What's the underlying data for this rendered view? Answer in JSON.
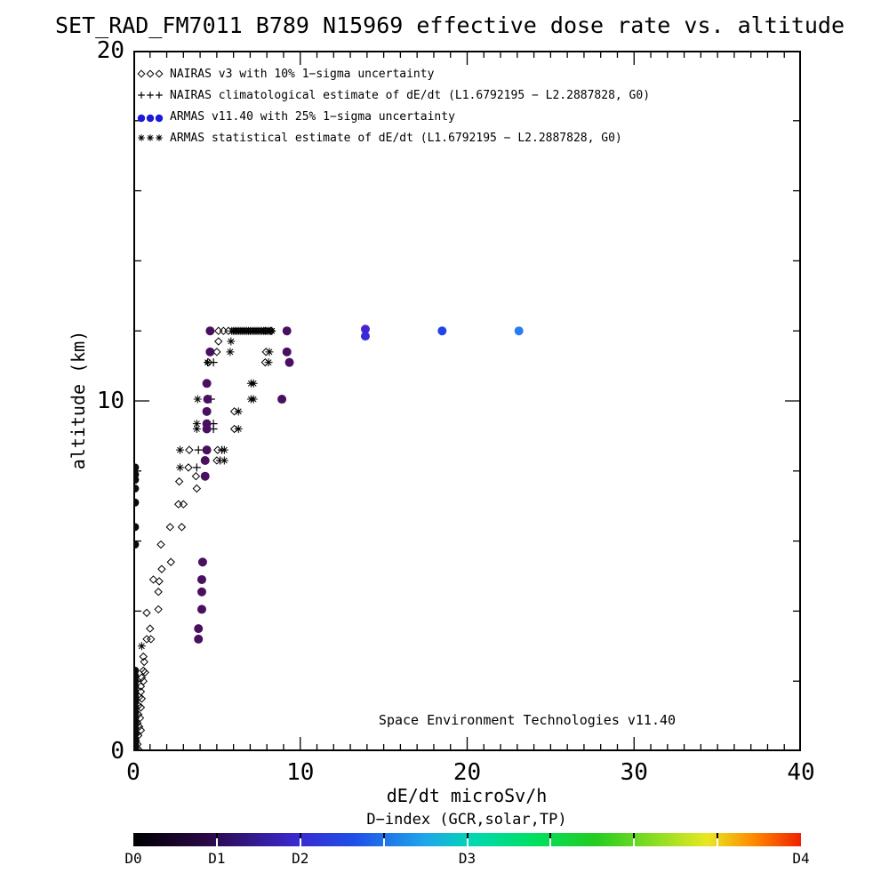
{
  "title": "SET_RAD_FM7011  B789 N15969 effective dose rate vs. altitude",
  "chart_data": {
    "type": "scatter",
    "xlabel": "dE/dt microSv/h",
    "ylabel": "altitude (km)",
    "xlim": [
      0,
      40
    ],
    "ylim": [
      0,
      20
    ],
    "x_major_ticks": [
      0,
      10,
      20,
      30,
      40
    ],
    "x_minor_step": 1,
    "y_major_ticks": [
      0,
      10,
      20
    ],
    "y_minor_step": 2,
    "grid": false,
    "annotation": "Space Environment Technologies v11.40",
    "legend": [
      {
        "label": "NAIRAS v3 with 10% 1−sigma uncertainty",
        "marker": "diamond",
        "color": "#000000"
      },
      {
        "label": "NAIRAS climatological estimate of dE/dt (L1.6792195 − L2.2887828, G0)",
        "marker": "plus",
        "color": "#000000"
      },
      {
        "label": "ARMAS v11.40 with 25% 1−sigma uncertainty",
        "marker": "circle",
        "color": "#1b1bd8"
      },
      {
        "label": "ARMAS statistical estimate of dE/dt (L1.6792195 − L2.2887828, G0)",
        "marker": "asterisk",
        "color": "#000000"
      }
    ],
    "series": [
      {
        "name": "NAIRAS v3",
        "marker": "diamond",
        "color": "#000000",
        "size": 4,
        "points": [
          [
            5.1,
            12.0
          ],
          [
            5.4,
            12.0
          ],
          [
            5.7,
            12.0
          ],
          [
            7.9,
            12.0
          ],
          [
            8.25,
            12.0
          ],
          [
            5.1,
            11.7
          ],
          [
            5.0,
            11.4
          ],
          [
            7.95,
            11.4
          ],
          [
            4.5,
            11.1
          ],
          [
            7.9,
            11.1
          ],
          [
            6.05,
            9.7
          ],
          [
            6.05,
            9.2
          ],
          [
            3.35,
            8.6
          ],
          [
            5.05,
            8.6
          ],
          [
            5.0,
            8.3
          ],
          [
            3.3,
            8.1
          ],
          [
            3.75,
            7.85
          ],
          [
            2.75,
            7.7
          ],
          [
            3.8,
            7.5
          ],
          [
            2.7,
            7.05
          ],
          [
            3.0,
            7.05
          ],
          [
            2.2,
            6.4
          ],
          [
            2.9,
            6.4
          ],
          [
            1.65,
            5.9
          ],
          [
            2.25,
            5.4
          ],
          [
            1.7,
            5.2
          ],
          [
            1.2,
            4.9
          ],
          [
            1.55,
            4.85
          ],
          [
            1.5,
            4.55
          ],
          [
            1.5,
            4.05
          ],
          [
            0.8,
            3.95
          ],
          [
            1.0,
            3.5
          ],
          [
            0.8,
            3.2
          ],
          [
            1.05,
            3.2
          ],
          [
            0.6,
            2.7
          ],
          [
            0.65,
            2.55
          ],
          [
            0.6,
            2.3
          ],
          [
            0.7,
            2.25
          ],
          [
            0.5,
            2.1
          ],
          [
            0.6,
            2.0
          ],
          [
            0.45,
            1.85
          ],
          [
            0.45,
            1.7
          ],
          [
            0.35,
            1.55
          ],
          [
            0.5,
            1.5
          ],
          [
            0.3,
            1.3
          ],
          [
            0.45,
            1.25
          ],
          [
            0.3,
            1.05
          ],
          [
            0.4,
            0.95
          ],
          [
            0.25,
            0.8
          ],
          [
            0.35,
            0.7
          ],
          [
            0.45,
            0.6
          ],
          [
            0.2,
            0.5
          ],
          [
            0.3,
            0.45
          ],
          [
            0.15,
            0.3
          ],
          [
            0.25,
            0.2
          ],
          [
            0.2,
            0.1
          ],
          [
            0.3,
            0.05
          ]
        ]
      },
      {
        "name": "NAIRAS climatological",
        "marker": "plus",
        "color": "#000000",
        "size": 4.5,
        "points": [
          [
            4.8,
            11.1
          ],
          [
            4.65,
            10.05
          ],
          [
            4.8,
            9.35
          ],
          [
            4.8,
            9.2
          ],
          [
            3.9,
            8.6
          ],
          [
            5.3,
            8.6
          ],
          [
            5.2,
            8.3
          ],
          [
            3.8,
            8.1
          ]
        ]
      },
      {
        "name": "ARMAS statistical",
        "marker": "asterisk",
        "color": "#000000",
        "size": 4.5,
        "points": [
          [
            5.9,
            12.0
          ],
          [
            6.0,
            12.0
          ],
          [
            6.1,
            12.0
          ],
          [
            6.2,
            12.0
          ],
          [
            6.3,
            12.0
          ],
          [
            6.4,
            12.0
          ],
          [
            6.5,
            12.0
          ],
          [
            6.6,
            12.0
          ],
          [
            6.7,
            12.0
          ],
          [
            6.8,
            12.0
          ],
          [
            6.9,
            12.0
          ],
          [
            7.0,
            12.0
          ],
          [
            7.1,
            12.0
          ],
          [
            7.2,
            12.0
          ],
          [
            7.3,
            12.0
          ],
          [
            7.4,
            12.0
          ],
          [
            7.5,
            12.0
          ],
          [
            7.6,
            12.0
          ],
          [
            7.7,
            12.0
          ],
          [
            7.8,
            12.0
          ],
          [
            7.9,
            12.0
          ],
          [
            8.0,
            12.0
          ],
          [
            8.1,
            12.0
          ],
          [
            8.2,
            12.0
          ],
          [
            8.3,
            12.0
          ],
          [
            5.85,
            11.7
          ],
          [
            5.8,
            11.4
          ],
          [
            8.15,
            11.4
          ],
          [
            4.45,
            11.1
          ],
          [
            8.1,
            11.1
          ],
          [
            7.05,
            10.5
          ],
          [
            7.2,
            10.5
          ],
          [
            3.85,
            10.05
          ],
          [
            7.05,
            10.05
          ],
          [
            7.2,
            10.05
          ],
          [
            6.3,
            9.7
          ],
          [
            3.8,
            9.35
          ],
          [
            3.8,
            9.2
          ],
          [
            6.3,
            9.2
          ],
          [
            2.8,
            8.6
          ],
          [
            5.45,
            8.6
          ],
          [
            5.45,
            8.3
          ],
          [
            2.8,
            8.1
          ],
          [
            0.5,
            3.0
          ]
        ]
      },
      {
        "name": "ARMAS v11.40 (D1 purple)",
        "marker": "circle",
        "color": "#4a1060",
        "size": 5,
        "points": [
          [
            4.6,
            12.0
          ],
          [
            9.2,
            12.0
          ],
          [
            4.6,
            11.4
          ],
          [
            9.2,
            11.4
          ],
          [
            9.35,
            11.1
          ],
          [
            4.4,
            10.5
          ],
          [
            4.45,
            10.05
          ],
          [
            8.9,
            10.05
          ],
          [
            4.4,
            9.7
          ],
          [
            4.4,
            9.35
          ],
          [
            4.4,
            9.2
          ],
          [
            4.4,
            8.6
          ],
          [
            4.3,
            8.3
          ],
          [
            4.3,
            7.85
          ],
          [
            4.15,
            5.4
          ],
          [
            4.1,
            4.9
          ],
          [
            4.1,
            4.55
          ],
          [
            4.1,
            4.05
          ],
          [
            3.9,
            3.5
          ],
          [
            3.9,
            3.2
          ]
        ]
      },
      {
        "name": "ARMAS v11.40 (D0 black)",
        "marker": "circle",
        "color": "#0a0a0a",
        "size": 4.5,
        "points": [
          [
            0.1,
            8.1
          ],
          [
            0.1,
            7.9
          ],
          [
            0.1,
            7.75
          ],
          [
            0.1,
            7.5
          ],
          [
            0.1,
            7.1
          ],
          [
            0.1,
            6.4
          ],
          [
            0.1,
            5.9
          ],
          [
            0.1,
            2.3
          ],
          [
            0.1,
            2.15
          ],
          [
            0.1,
            2.0
          ],
          [
            0.1,
            1.85
          ],
          [
            0.1,
            1.7
          ],
          [
            0.1,
            1.55
          ],
          [
            0.1,
            1.4
          ],
          [
            0.1,
            1.25
          ],
          [
            0.1,
            1.1
          ],
          [
            0.1,
            0.95
          ],
          [
            0.1,
            0.8
          ],
          [
            0.1,
            0.65
          ],
          [
            0.1,
            0.5
          ],
          [
            0.1,
            0.35
          ],
          [
            0.1,
            0.2
          ],
          [
            0.1,
            0.05
          ]
        ]
      },
      {
        "name": "ARMAS v11.40 (D1-D2 violet)",
        "marker": "circle",
        "color": "#4a22cf",
        "size": 5,
        "points": [
          [
            13.9,
            12.05
          ]
        ]
      },
      {
        "name": "ARMAS v11.40 (D2 blue-violet)",
        "marker": "circle",
        "color": "#3a2bd9",
        "size": 5,
        "points": [
          [
            13.9,
            11.85
          ]
        ]
      },
      {
        "name": "ARMAS v11.40 (D2 blue)",
        "marker": "circle",
        "color": "#2144ea",
        "size": 5,
        "points": [
          [
            18.5,
            12.0
          ]
        ]
      },
      {
        "name": "ARMAS v11.40 (D2 light-blue)",
        "marker": "circle",
        "color": "#2b7bf2",
        "size": 5,
        "points": [
          [
            23.1,
            12.0
          ]
        ]
      }
    ],
    "colorbar": {
      "label": "D−index (GCR,solar,TP)",
      "tick_labels": [
        "D0",
        "D1",
        "D2",
        "D3",
        "D4"
      ],
      "tick_positions": [
        0,
        0.125,
        0.25,
        0.5,
        1.0
      ],
      "segment_count": 8,
      "gradient": [
        [
          0.0,
          "#000000"
        ],
        [
          0.11,
          "#2a0845"
        ],
        [
          0.24,
          "#3b28cc"
        ],
        [
          0.33,
          "#1f4fe8"
        ],
        [
          0.44,
          "#1ea8e8"
        ],
        [
          0.51,
          "#00d8b0"
        ],
        [
          0.6,
          "#00e060"
        ],
        [
          0.69,
          "#22cc22"
        ],
        [
          0.78,
          "#88dd22"
        ],
        [
          0.86,
          "#e8e822"
        ],
        [
          0.93,
          "#ff8800"
        ],
        [
          1.0,
          "#ee2200"
        ]
      ]
    }
  }
}
